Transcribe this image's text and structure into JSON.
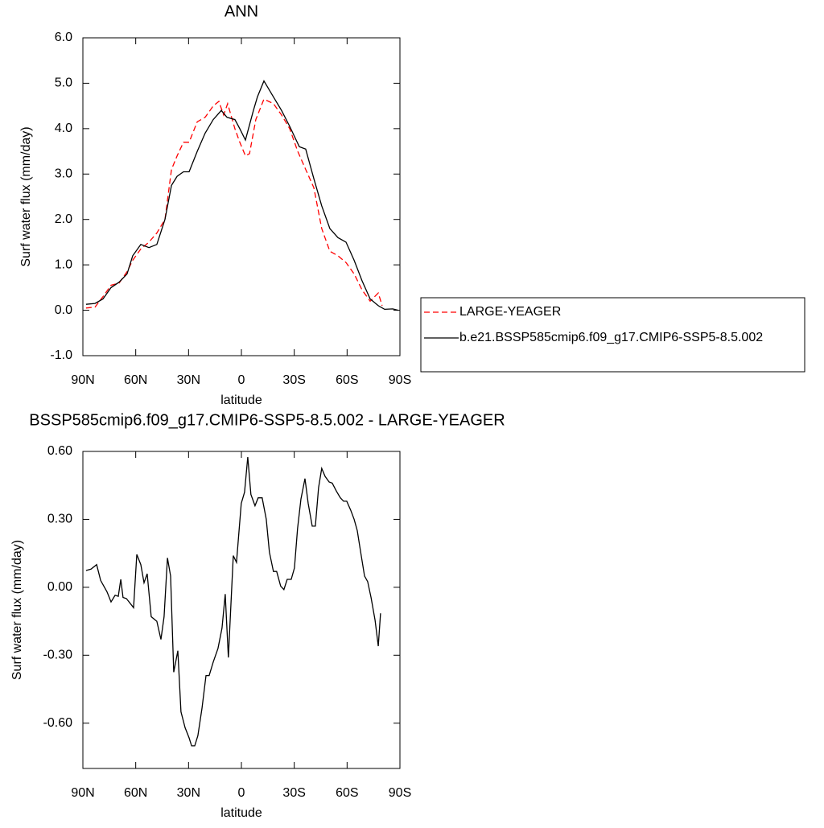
{
  "chart_data": [
    {
      "type": "line",
      "title": "ANN",
      "xlabel": "latitude",
      "ylabel": "Surf water flux (mm/day)",
      "xlim": [
        90,
        -90
      ],
      "ylim": [
        -1,
        6
      ],
      "xticks": [
        {
          "value": 90,
          "label": "90N"
        },
        {
          "value": 60,
          "label": "60N"
        },
        {
          "value": 30,
          "label": "30N"
        },
        0,
        {
          "value": -30,
          "label": "30S"
        },
        {
          "value": -60,
          "label": "60S"
        },
        {
          "value": -90,
          "label": "90S"
        }
      ],
      "yticks": [
        {
          "value": -1,
          "label": "-1.0"
        },
        {
          "value": 0,
          "label": "0.0"
        },
        {
          "value": 1,
          "label": "1.0"
        },
        {
          "value": 2,
          "label": "2.0"
        },
        {
          "value": 3,
          "label": "3.0"
        },
        {
          "value": 4,
          "label": "4.0"
        },
        {
          "value": 5,
          "label": "5.0"
        },
        {
          "value": 6,
          "label": "6.0"
        }
      ],
      "legend": "right",
      "series": [
        {
          "name": "LARGE-YEAGER",
          "color": "#ff0000",
          "dashed": true,
          "x": [
            88.2,
            83.1,
            78.6,
            74.0,
            69.4,
            64.9,
            61.7,
            57.1,
            52.5,
            48.0,
            43.4,
            39.7,
            36.5,
            32.9,
            29.7,
            25.1,
            20.6,
            16.0,
            12.8,
            10.1,
            7.8,
            3.7,
            0.9,
            -2.3,
            -4.6,
            -8.2,
            -12.8,
            -18.2,
            -22.8,
            -27.4,
            -32.0,
            -36.5,
            -41.1,
            -45.6,
            -50.2,
            -54.8,
            -59.4,
            -64.0,
            -68.5,
            -73.1,
            -77.7,
            -79.9
          ],
          "values": [
            0.05,
            0.07,
            0.3,
            0.55,
            0.6,
            0.85,
            1.1,
            1.35,
            1.5,
            1.7,
            2.0,
            3.1,
            3.4,
            3.7,
            3.7,
            4.15,
            4.25,
            4.5,
            4.6,
            4.3,
            4.55,
            4.0,
            3.7,
            3.4,
            3.45,
            4.2,
            4.65,
            4.55,
            4.3,
            4.0,
            3.5,
            3.1,
            2.7,
            1.8,
            1.3,
            1.2,
            1.05,
            0.8,
            0.45,
            0.2,
            0.38,
            0.1
          ]
        },
        {
          "name": "b.e21.BSSP585cmip6.f09_g17.CMIP6-SSP5-8.5.002",
          "color": "#000000",
          "dashed": false,
          "x": [
            88.2,
            83.1,
            78.6,
            74.0,
            69.4,
            64.9,
            61.7,
            57.1,
            52.5,
            48.0,
            43.4,
            39.7,
            36.5,
            32.9,
            29.7,
            25.1,
            20.6,
            16.0,
            11.4,
            8.2,
            3.7,
            0.9,
            -2.3,
            -6.8,
            -9.1,
            -12.8,
            -18.2,
            -22.8,
            -27.4,
            -32.9,
            -36.5,
            -41.1,
            -45.6,
            -50.2,
            -54.8,
            -59.4,
            -64.0,
            -68.5,
            -73.1,
            -77.7,
            -81.3,
            -85.9,
            -89.1
          ],
          "values": [
            0.13,
            0.15,
            0.25,
            0.5,
            0.62,
            0.8,
            1.2,
            1.45,
            1.38,
            1.45,
            2.0,
            2.75,
            2.95,
            3.05,
            3.05,
            3.5,
            3.9,
            4.2,
            4.4,
            4.25,
            4.2,
            4.0,
            3.75,
            4.4,
            4.7,
            5.05,
            4.7,
            4.4,
            4.05,
            3.6,
            3.55,
            2.9,
            2.3,
            1.8,
            1.6,
            1.5,
            1.1,
            0.65,
            0.25,
            0.1,
            0.02,
            0.03,
            0.0
          ]
        }
      ]
    },
    {
      "type": "line",
      "title": "BSSP585cmip6.f09_g17.CMIP6-SSP5-8.5.002 - LARGE-YEAGER",
      "xlabel": "latitude",
      "ylabel": "Surf water flux (mm/day)",
      "xlim": [
        90,
        -90
      ],
      "ylim": [
        -0.8,
        0.6
      ],
      "xticks": [
        {
          "value": 90,
          "label": "90N"
        },
        {
          "value": 60,
          "label": "60N"
        },
        {
          "value": 30,
          "label": "30N"
        },
        0,
        {
          "value": -30,
          "label": "30S"
        },
        {
          "value": -60,
          "label": "60S"
        },
        {
          "value": -90,
          "label": "90S"
        }
      ],
      "yticks": [
        {
          "value": -0.6,
          "label": "-0.60"
        },
        {
          "value": -0.3,
          "label": "-0.30"
        },
        {
          "value": 0,
          "label": "0.00"
        },
        {
          "value": 0.3,
          "label": "0.30"
        },
        {
          "value": 0.6,
          "label": "0.60"
        }
      ],
      "series": [
        {
          "color": "#000000",
          "dashed": false,
          "x": [
            88.2,
            85.4,
            82.2,
            79.9,
            76.3,
            74.0,
            71.7,
            69.9,
            68.5,
            67.2,
            65.3,
            61.2,
            59.4,
            57.1,
            55.3,
            53.5,
            51.2,
            48.0,
            45.7,
            43.9,
            42.0,
            40.2,
            38.4,
            36.1,
            34.3,
            32.0,
            29.7,
            28.3,
            26.5,
            24.7,
            22.4,
            20.1,
            18.3,
            16.0,
            13.3,
            11.0,
            9.2,
            7.4,
            4.6,
            2.8,
            0.1,
            -1.8,
            -3.6,
            -5.4,
            -7.7,
            -9.5,
            -11.8,
            -14.1,
            -15.9,
            -18.2,
            -20.0,
            -22.3,
            -24.1,
            -26.0,
            -28.3,
            -30.1,
            -31.9,
            -33.8,
            -36.1,
            -37.9,
            -40.2,
            -42.0,
            -43.8,
            -45.6,
            -47.5,
            -49.8,
            -51.6,
            -53.9,
            -56.2,
            -58.0,
            -59.8,
            -62.1,
            -64.0,
            -65.8,
            -67.6,
            -69.9,
            -71.7,
            -73.6,
            -75.9,
            -77.7,
            -79.0
          ],
          "values": [
            0.074,
            0.08,
            0.1,
            0.03,
            -0.02,
            -0.065,
            -0.035,
            -0.04,
            0.035,
            -0.045,
            -0.05,
            -0.09,
            0.145,
            0.1,
            0.02,
            0.06,
            -0.13,
            -0.15,
            -0.23,
            -0.13,
            0.13,
            0.05,
            -0.375,
            -0.28,
            -0.55,
            -0.62,
            -0.665,
            -0.7,
            -0.7,
            -0.655,
            -0.535,
            -0.39,
            -0.39,
            -0.33,
            -0.27,
            -0.18,
            -0.03,
            -0.31,
            0.14,
            0.11,
            0.37,
            0.42,
            0.575,
            0.41,
            0.36,
            0.395,
            0.395,
            0.3,
            0.155,
            0.07,
            0.07,
            0.005,
            -0.01,
            0.035,
            0.035,
            0.085,
            0.26,
            0.39,
            0.48,
            0.37,
            0.27,
            0.27,
            0.44,
            0.525,
            0.49,
            0.465,
            0.46,
            0.425,
            0.395,
            0.38,
            0.38,
            0.34,
            0.3,
            0.25,
            0.16,
            0.05,
            0.025,
            -0.045,
            -0.145,
            -0.26,
            -0.115
          ]
        }
      ]
    }
  ]
}
